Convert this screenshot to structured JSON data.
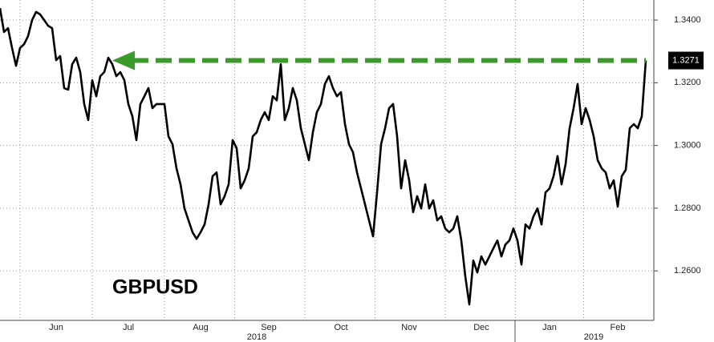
{
  "chart_data": {
    "type": "line",
    "categories": [
      null,
      null,
      null,
      null,
      null,
      null,
      null,
      null,
      null,
      null,
      null,
      null,
      null,
      null,
      "Jun",
      null,
      null,
      null,
      null,
      null,
      null,
      null,
      null,
      null,
      null,
      null,
      null,
      null,
      null,
      null,
      null,
      null,
      "Jul",
      null,
      null,
      null,
      null,
      null,
      null,
      null,
      null,
      null,
      null,
      null,
      null,
      null,
      null,
      null,
      null,
      null,
      "Aug",
      null,
      null,
      null,
      null,
      null,
      null,
      null,
      null,
      null,
      null,
      null,
      null,
      null,
      null,
      null,
      null,
      "Sep",
      null,
      null,
      null,
      null,
      null,
      null,
      null,
      null,
      null,
      null,
      null,
      null,
      null,
      null,
      null,
      null,
      null,
      "Oct",
      null,
      null,
      null,
      null,
      null,
      null,
      null,
      null,
      null,
      null,
      null,
      null,
      null,
      null,
      null,
      null,
      "Nov",
      null,
      null,
      null,
      null,
      null,
      null,
      null,
      null,
      null,
      null,
      null,
      null,
      null,
      null,
      null,
      null,
      null,
      "Dec",
      null,
      null,
      null,
      null,
      null,
      null,
      null,
      null,
      null,
      null,
      null,
      null,
      null,
      null,
      null,
      null,
      "Jan",
      null,
      null,
      null,
      null,
      null,
      null,
      null,
      null,
      null,
      null,
      null,
      null,
      null,
      null,
      null,
      null,
      "Feb",
      null,
      null,
      null,
      null,
      null,
      null,
      null
    ],
    "year_categories": [
      null,
      null,
      null,
      null,
      null,
      null,
      null,
      null,
      null,
      null,
      null,
      null,
      null,
      null,
      null,
      null,
      null,
      null,
      null,
      null,
      null,
      null,
      null,
      null,
      null,
      null,
      null,
      null,
      null,
      null,
      null,
      null,
      null,
      null,
      null,
      null,
      null,
      null,
      null,
      null,
      null,
      null,
      null,
      null,
      null,
      null,
      null,
      null,
      null,
      null,
      null,
      null,
      null,
      null,
      null,
      null,
      null,
      null,
      null,
      null,
      null,
      null,
      null,
      null,
      "2018",
      null,
      null,
      null,
      null,
      null,
      null,
      null,
      null,
      null,
      null,
      null,
      null,
      null,
      null,
      null,
      null,
      null,
      null,
      null,
      null,
      null,
      null,
      null,
      null,
      null,
      null,
      null,
      null,
      null,
      null,
      null,
      null,
      null,
      null,
      null,
      null,
      null,
      null,
      null,
      null,
      null,
      null,
      null,
      null,
      null,
      null,
      null,
      null,
      null,
      null,
      null,
      null,
      null,
      null,
      null,
      null,
      null,
      null,
      null,
      null,
      null,
      null,
      null,
      null,
      null,
      null,
      null,
      null,
      null,
      null,
      null,
      null,
      null,
      null,
      null,
      null,
      null,
      null,
      null,
      null,
      null,
      null,
      null,
      "2019",
      null,
      null,
      null,
      null,
      null,
      null,
      null,
      null,
      null,
      null,
      null,
      null,
      null
    ],
    "series": [
      {
        "name": "GBPUSD",
        "color": "#000000",
        "values": [
          1.3438,
          1.3362,
          1.3374,
          1.3311,
          1.3254,
          1.3311,
          1.3323,
          1.3349,
          1.34,
          1.3426,
          1.3418,
          1.34,
          1.3382,
          1.3374,
          1.3272,
          1.3285,
          1.3183,
          1.3178,
          1.3259,
          1.328,
          1.3234,
          1.3132,
          1.3081,
          1.3208,
          1.3157,
          1.3221,
          1.3234,
          1.328,
          1.3259,
          1.3221,
          1.3234,
          1.3208,
          1.3132,
          1.3093,
          1.3017,
          1.3132,
          1.3157,
          1.3183,
          1.3119,
          1.3132,
          1.3132,
          1.3132,
          1.3029,
          1.3004,
          1.2927,
          1.2876,
          1.2799,
          1.2761,
          1.2723,
          1.2702,
          1.2723,
          1.2748,
          1.2812,
          1.2902,
          1.2914,
          1.2812,
          1.2838,
          1.2876,
          1.3017,
          1.2991,
          1.2863,
          1.2889,
          1.2927,
          1.3029,
          1.3042,
          1.3081,
          1.3106,
          1.3081,
          1.3157,
          1.3144,
          1.3259,
          1.3081,
          1.3119,
          1.3183,
          1.3144,
          1.3055,
          1.3004,
          1.2953,
          1.3042,
          1.3106,
          1.3132,
          1.3196,
          1.3221,
          1.3183,
          1.3157,
          1.317,
          1.3068,
          1.3004,
          1.2978,
          1.2914,
          1.2863,
          1.2812,
          1.2761,
          1.271,
          1.285,
          1.3004,
          1.3055,
          1.3119,
          1.3132,
          1.3029,
          1.2863,
          1.2953,
          1.2889,
          1.2787,
          1.2838,
          1.2799,
          1.2876,
          1.2799,
          1.2825,
          1.2761,
          1.2774,
          1.2735,
          1.2723,
          1.2735,
          1.2774,
          1.2697,
          1.2582,
          1.2493,
          1.2633,
          1.2595,
          1.2646,
          1.262,
          1.2646,
          1.2672,
          1.2697,
          1.2646,
          1.2684,
          1.2697,
          1.2735,
          1.2697,
          1.262,
          1.2748,
          1.2735,
          1.2774,
          1.2799,
          1.2748,
          1.285,
          1.2863,
          1.2902,
          1.2966,
          1.2876,
          1.294,
          1.3055,
          1.3119,
          1.3196,
          1.3068,
          1.3119,
          1.3081,
          1.3029,
          1.2953,
          1.2927,
          1.2914,
          1.2863,
          1.2889,
          1.2805,
          1.2902,
          1.2922,
          1.3055,
          1.3068,
          1.3055,
          1.3093,
          1.3271
        ]
      }
    ],
    "ylim": [
      1.2442,
      1.3464
    ],
    "yticks": [
      {
        "value": 1.26,
        "label": "1.2600"
      },
      {
        "value": 1.28,
        "label": "1.2800"
      },
      {
        "value": 1.3,
        "label": "1.3000"
      },
      {
        "value": 1.32,
        "label": "1.3200"
      },
      {
        "value": 1.34,
        "label": "1.3400"
      }
    ],
    "grid": true,
    "arrow_color": "#3a9a2a"
  }
}
